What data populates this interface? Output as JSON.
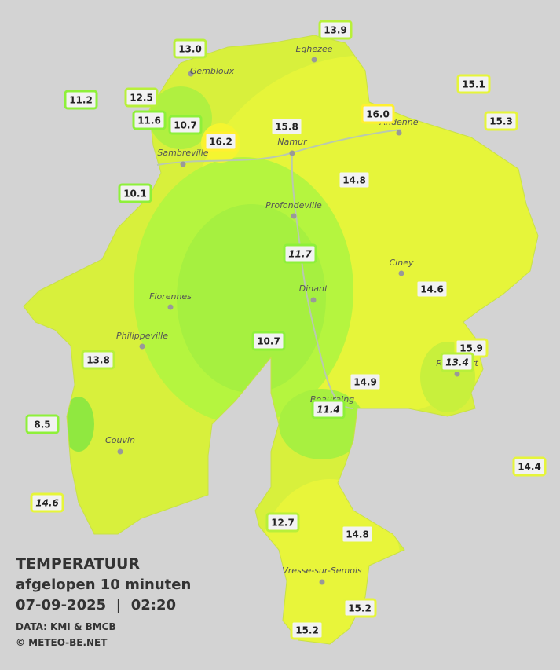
{
  "map": {
    "stations": [
      "13.9",
      "13.0",
      "15.1",
      "11.2",
      "12.5",
      "11.6",
      "10.7",
      "16.0",
      "15.3",
      "15.8",
      "16.2",
      "14.8",
      "10.1",
      "11.7",
      "14.6",
      "10.7",
      "15.9",
      "13.4",
      "13.8",
      "14.9",
      "11.4",
      "8.5",
      "14.4",
      "14.6",
      "12.7",
      "14.8",
      "15.2",
      "15.2"
    ],
    "towns": [
      "Eghezee",
      "Gembloux",
      "Andenne",
      "Namur",
      "Sambreville",
      "Profondeville",
      "Ciney",
      "Dinant",
      "Florennes",
      "Philippeville",
      "Rochefort",
      "Beauraing",
      "Couvin",
      "Vresse-sur-Semois"
    ]
  },
  "legend": {
    "title": "TEMPERATUUR",
    "subtitle": "afgelopen 10 minuten",
    "datetime": "07-09-2025  |  02:20",
    "source": "DATA: KMI & BMCB",
    "copyright": "© METEO-BE.NET"
  }
}
